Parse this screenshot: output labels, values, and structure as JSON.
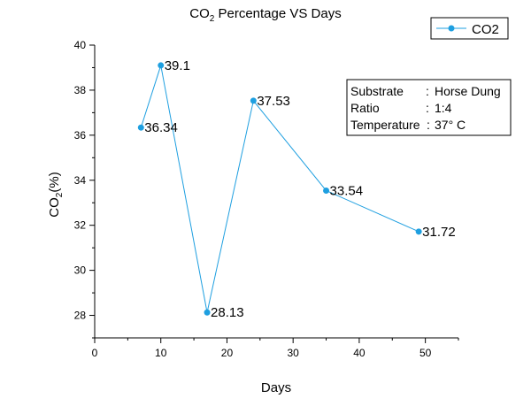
{
  "chart_data": {
    "type": "line",
    "title": {
      "main": "CO",
      "sub": "2",
      "rest": " Percentage VS Days"
    },
    "xlabel": "Days",
    "ylabel": {
      "main": "CO",
      "sub": "2",
      "rest": "(%)"
    },
    "xlim": [
      0,
      55
    ],
    "ylim": [
      27,
      40
    ],
    "x_ticks": [
      0,
      10,
      20,
      30,
      40,
      50
    ],
    "y_ticks": [
      28,
      30,
      32,
      34,
      36,
      38,
      40
    ],
    "grid": false,
    "legend_position": "top-right",
    "series": [
      {
        "name": "CO2",
        "color": "#1e9fe0",
        "x": [
          7,
          10,
          17,
          24,
          35,
          49
        ],
        "y": [
          36.34,
          39.1,
          28.13,
          37.53,
          33.54,
          31.72
        ],
        "labels": [
          "36.34",
          "39.1",
          "28.13",
          "37.53",
          "33.54",
          "31.72"
        ]
      }
    ],
    "info_box": [
      {
        "key": "Substrate",
        "sep": ":",
        "value": "Horse Dung"
      },
      {
        "key": "Ratio",
        "sep": ":",
        "value": "1:4"
      },
      {
        "key": "Temperature",
        "sep": ":",
        "value": "37° C"
      }
    ]
  }
}
